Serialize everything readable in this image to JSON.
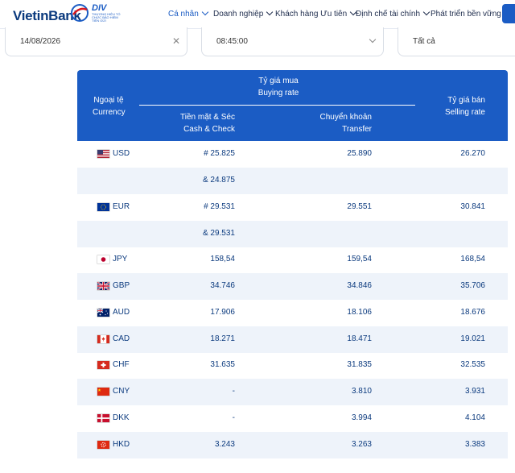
{
  "header": {
    "logo": "VietinBank",
    "badge": {
      "title": "DIV",
      "subtitle": "THƯƠNG HIỆU TỔ CHỨC BẢO HIỂM TIỀN GỬI"
    },
    "nav": [
      {
        "label": "Cá nhân",
        "active": true
      },
      {
        "label": "Doanh nghiệp",
        "active": false
      },
      {
        "label": "Khách hàng Ưu tiên",
        "active": false
      },
      {
        "label": "Định chế tài chính",
        "active": false
      },
      {
        "label": "Phát triển bền vững",
        "active": false
      }
    ]
  },
  "filters": {
    "date": "14/08/2026",
    "time": "08:45:00",
    "type": "Tất cả"
  },
  "table": {
    "headers": {
      "currency_vi": "Ngoại tệ",
      "currency_en": "Currency",
      "buying_vi": "Tỷ giá mua",
      "buying_en": "Buying rate",
      "cash_vi": "Tiền mặt & Séc",
      "cash_en": "Cash & Check",
      "transfer_vi": "Chuyển khoản",
      "transfer_en": "Transfer",
      "selling_vi": "Tỷ giá bán",
      "selling_en": "Selling rate"
    },
    "rows": [
      {
        "flag": "us-flag",
        "code": "USD",
        "cash": "# 25.825",
        "transfer": "25.890",
        "selling": "26.270"
      },
      {
        "flag": "",
        "code": "",
        "cash": "& 24.875",
        "transfer": "",
        "selling": ""
      },
      {
        "flag": "eu-flag",
        "code": "EUR",
        "cash": "# 29.531",
        "transfer": "29.551",
        "selling": "30.841"
      },
      {
        "flag": "",
        "code": "",
        "cash": "& 29.531",
        "transfer": "",
        "selling": ""
      },
      {
        "flag": "jp-flag",
        "code": "JPY",
        "cash": "158,54",
        "transfer": "159,54",
        "selling": "168,54"
      },
      {
        "flag": "gb-flag",
        "code": "GBP",
        "cash": "34.746",
        "transfer": "34.846",
        "selling": "35.706"
      },
      {
        "flag": "au-flag",
        "code": "AUD",
        "cash": "17.906",
        "transfer": "18.106",
        "selling": "18.676"
      },
      {
        "flag": "ca-flag",
        "code": "CAD",
        "cash": "18.271",
        "transfer": "18.471",
        "selling": "19.021"
      },
      {
        "flag": "ch-flag",
        "code": "CHF",
        "cash": "31.635",
        "transfer": "31.835",
        "selling": "32.535"
      },
      {
        "flag": "cn-flag",
        "code": "CNY",
        "cash": "-",
        "transfer": "3.810",
        "selling": "3.931"
      },
      {
        "flag": "dk-flag",
        "code": "DKK",
        "cash": "-",
        "transfer": "3.994",
        "selling": "4.104"
      },
      {
        "flag": "hk-flag",
        "code": "HKD",
        "cash": "3.243",
        "transfer": "3.263",
        "selling": "3.383"
      }
    ]
  }
}
